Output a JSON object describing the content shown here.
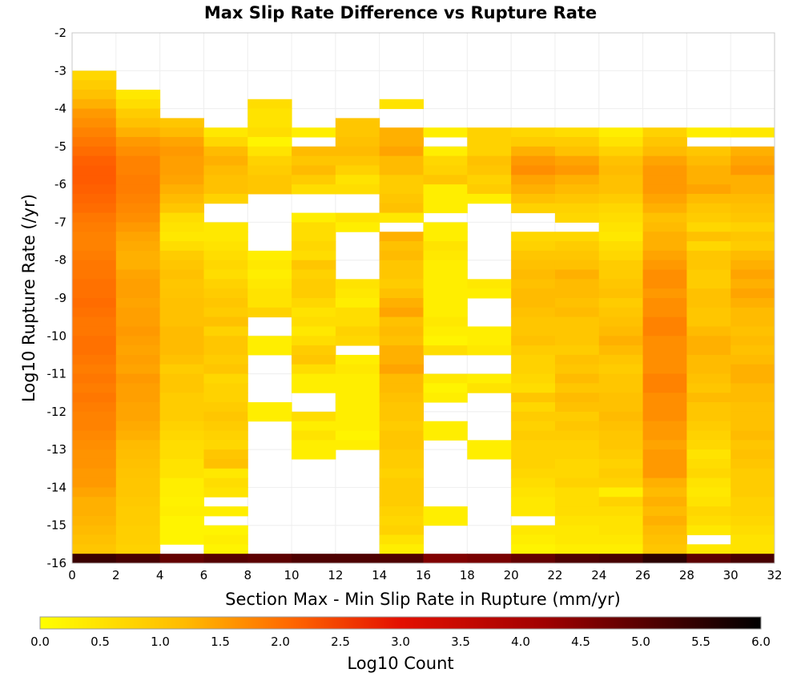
{
  "chart_data": {
    "type": "heatmap",
    "title": "Max Slip Rate Difference vs Rupture Rate",
    "xlabel": "Section Max - Min Slip Rate in Rupture (mm/yr)",
    "ylabel": "Log10 Rupture Rate (/yr)",
    "colorbar_label": "Log10 Count",
    "xlim": [
      0,
      32
    ],
    "ylim": [
      -16,
      -2
    ],
    "x_ticks": [
      "0",
      "2",
      "4",
      "6",
      "8",
      "10",
      "12",
      "14",
      "16",
      "18",
      "20",
      "22",
      "24",
      "26",
      "28",
      "30",
      "32"
    ],
    "y_ticks": [
      "-2",
      "-3",
      "-4",
      "-5",
      "-6",
      "-7",
      "-8",
      "-9",
      "-10",
      "-11",
      "-12",
      "-13",
      "-14",
      "-15",
      "-16"
    ],
    "colorbar_range": [
      0,
      6
    ],
    "colorbar_ticks": [
      "0.0",
      "0.5",
      "1.0",
      "1.5",
      "2.0",
      "2.5",
      "3.0",
      "3.5",
      "4.0",
      "4.5",
      "5.0",
      "5.5",
      "6.0"
    ],
    "colormap": [
      "#ffff00",
      "#ffbb00",
      "#ff5500",
      "#e01000",
      "#800000",
      "#000000"
    ],
    "x_bin_width": 2,
    "y_bin_height": 0.25,
    "columns": [
      {
        "x0": 0,
        "y_top": -3.0,
        "levels": [
          0.7,
          0.9,
          1.1,
          1.3,
          1.5,
          1.6,
          1.7,
          1.8,
          1.9,
          2.0,
          2.05,
          2.05,
          2.0,
          1.95,
          1.9,
          1.8,
          1.75,
          1.7,
          1.7,
          1.75,
          1.8,
          1.8,
          1.85,
          1.85,
          1.9,
          1.85,
          1.8,
          1.8,
          1.85,
          1.85,
          1.8,
          1.75,
          1.8,
          1.75,
          1.8,
          1.75,
          1.7,
          1.7,
          1.65,
          1.6,
          1.55,
          1.55,
          1.5,
          1.5,
          1.4,
          1.3,
          1.3,
          1.25,
          1.2,
          1.1,
          1.0,
          0.9
        ],
        "blanks": [],
        "floor": 5.2
      },
      {
        "x0": 2,
        "y_top": -3.5,
        "levels": [
          0.4,
          0.6,
          0.9,
          1.1,
          1.3,
          1.5,
          1.6,
          1.7,
          1.7,
          1.75,
          1.75,
          1.7,
          1.65,
          1.6,
          1.5,
          1.4,
          1.35,
          1.3,
          1.3,
          1.4,
          1.45,
          1.45,
          1.4,
          1.45,
          1.45,
          1.5,
          1.45,
          1.4,
          1.45,
          1.4,
          1.5,
          1.45,
          1.45,
          1.4,
          1.4,
          1.35,
          1.3,
          1.2,
          1.15,
          1.1,
          1.05,
          1.0,
          1.0,
          0.95,
          0.9,
          0.9,
          0.85,
          0.85,
          0.8,
          0.8
        ],
        "blanks": [],
        "floor": 5.0
      },
      {
        "x0": 4,
        "y_top": -4.25,
        "levels": [
          1.0,
          1.2,
          1.4,
          1.5,
          1.45,
          1.45,
          1.4,
          1.3,
          1.2,
          1.0,
          0.6,
          0.5,
          0.4,
          0.6,
          0.9,
          1.0,
          1.1,
          1.0,
          1.05,
          1.1,
          1.1,
          1.1,
          1.2,
          1.2,
          1.2,
          1.1,
          0.9,
          1.0,
          1.0,
          0.9,
          0.9,
          0.9,
          0.8,
          0.7,
          0.6,
          0.6,
          0.5,
          0.5,
          0.3,
          0.3,
          0.25,
          0.3,
          0.2,
          0.2,
          0.2
        ],
        "blanks": [],
        "floor": 4.6
      },
      {
        "x0": 6,
        "y_top": -4.5,
        "levels": [
          0.4,
          0.7,
          1.2,
          1.3,
          1.2,
          1.1,
          1.1,
          0.8,
          0.3,
          0.5,
          0.4,
          0.4,
          0.5,
          0.6,
          0.7,
          0.6,
          0.8,
          0.9,
          1.0,
          0.9,
          1.1,
          0.8,
          1.0,
          1.0,
          0.9,
          1.0,
          0.7,
          0.8,
          0.8,
          0.9,
          1.0,
          0.9,
          0.8,
          0.7,
          1.0,
          1.1,
          0.4,
          0.6,
          0.5,
          0.4,
          0.3,
          0.3,
          0.2,
          0.3,
          0.2
        ],
        "blanks": [
          8,
          9,
          39,
          41,
          45
        ],
        "floor": 4.8
      },
      {
        "x0": 8,
        "y_top": -3.75,
        "levels": [
          0.6,
          0.5,
          0.5,
          0.6,
          0.2,
          0.5,
          0.8,
          0.9,
          1.0,
          1.0,
          0.9,
          0.8,
          0.6,
          0.3,
          0.3,
          0.3,
          0.3,
          0.4,
          0.3,
          0.4,
          0.5,
          0.5,
          0.8,
          0.6,
          0.5,
          0.3,
          0.3,
          0.4,
          0.6,
          0.7,
          0.4,
          0.3,
          0.3,
          0.3,
          0.4,
          0.4,
          0.3,
          0.3,
          0.3,
          0.3,
          0.3,
          0.3,
          0.3,
          0.3,
          0.3,
          0.3,
          0.3,
          0.3,
          0.3
        ],
        "blanks": [
          10,
          11,
          12,
          13,
          14,
          15,
          23,
          24,
          27,
          28,
          29,
          30,
          31,
          34,
          35,
          36,
          37,
          38,
          39,
          40,
          41,
          42,
          43,
          44,
          45,
          46,
          47,
          48
        ],
        "floor": 4.7
      },
      {
        "x0": 10,
        "y_top": -4.5,
        "levels": [
          0.3,
          0.7,
          1.2,
          1.0,
          1.2,
          0.9,
          0.6,
          0.4,
          0.3,
          0.3,
          0.6,
          0.6,
          0.7,
          0.6,
          1.0,
          0.8,
          0.9,
          0.9,
          0.7,
          0.5,
          0.6,
          0.4,
          0.6,
          0.9,
          1.0,
          0.6,
          0.3,
          0.3,
          0.7,
          0.5,
          0.6,
          0.3,
          0.5,
          0.3,
          0.3,
          0.2,
          0.5,
          0.3,
          0.2,
          0.3,
          0.6,
          0.3,
          0.3,
          0.3,
          0.3
        ],
        "blanks": [
          1,
          7,
          8,
          28,
          29,
          35,
          36,
          37,
          38,
          39,
          40,
          41,
          42,
          43,
          44
        ],
        "floor": 4.9
      },
      {
        "x0": 12,
        "y_top": -4.25,
        "levels": [
          1.0,
          1.0,
          1.1,
          1.2,
          1.0,
          0.8,
          0.5,
          0.6,
          0.4,
          0.5,
          0.5,
          0.3,
          0.3,
          0.6,
          0.7,
          0.8,
          0.6,
          0.5,
          0.4,
          0.3,
          0.6,
          0.6,
          0.8,
          0.7,
          0.5,
          0.3,
          0.4,
          0.3,
          0.3,
          0.3,
          0.3,
          0.3,
          0.3,
          0.2,
          0.3,
          0.3,
          0.2,
          0.3,
          0.2,
          0.3,
          0.3,
          0.3,
          0.3,
          0.3,
          0.3,
          0.3,
          0.3
        ],
        "blanks": [
          8,
          9,
          12,
          13,
          14,
          15,
          16,
          24,
          35,
          36,
          37,
          38,
          39,
          40,
          41,
          42,
          43,
          44,
          45,
          46
        ],
        "floor": 4.9
      },
      {
        "x0": 14,
        "y_top": -3.75,
        "levels": [
          0.5,
          0.5,
          1.3,
          1.3,
          1.3,
          1.4,
          1.2,
          1.2,
          0.9,
          0.9,
          1.0,
          1.1,
          0.4,
          0.9,
          1.3,
          1.1,
          1.2,
          1.0,
          1.0,
          0.9,
          1.1,
          1.3,
          1.4,
          1.1,
          1.2,
          1.1,
          1.3,
          1.3,
          1.4,
          1.2,
          1.2,
          1.1,
          1.0,
          1.0,
          0.9,
          1.0,
          1.0,
          0.9,
          0.9,
          0.8,
          0.9,
          0.9,
          0.9,
          0.8,
          0.7,
          0.8,
          0.5,
          0.3,
          0.2,
          0.1,
          0.1
        ],
        "blanks": [
          1,
          2,
          13
        ],
        "floor": 4.9
      },
      {
        "x0": 16,
        "y_top": -4.5,
        "levels": [
          0.3,
          0.5,
          0.3,
          0.7,
          0.8,
          1.0,
          0.3,
          0.3,
          0.3,
          0.2,
          0.3,
          0.3,
          0.5,
          0.4,
          0.3,
          0.3,
          0.3,
          0.3,
          0.3,
          0.3,
          0.4,
          0.3,
          0.2,
          0.6,
          0.5,
          0.2,
          0.4,
          0.2,
          0.3,
          0.2,
          0.3,
          0.3,
          0.3,
          0.2,
          0.3,
          0.3,
          0.3,
          0.6,
          0.4,
          0.3,
          0.3,
          0.3,
          0.3,
          0.3,
          0.3
        ],
        "blanks": [
          1,
          9,
          24,
          25,
          29,
          30,
          33,
          34,
          35,
          36,
          37,
          38,
          39,
          42,
          43,
          44
        ],
        "floor": 4.2
      },
      {
        "x0": 18,
        "y_top": -4.5,
        "levels": [
          0.8,
          0.8,
          0.8,
          1.1,
          1.0,
          0.8,
          0.9,
          0.3,
          0.3,
          0.3,
          0.3,
          0.3,
          0.3,
          0.3,
          0.3,
          0.4,
          0.4,
          0.3,
          0.3,
          0.3,
          0.3,
          0.3,
          0.3,
          0.4,
          0.4,
          0.5,
          0.3,
          0.5,
          0.5,
          0.4,
          0.3,
          0.3,
          0.3,
          0.3,
          0.3,
          0.3,
          0.3,
          0.3,
          0.3,
          0.3,
          0.3,
          0.3,
          0.3,
          0.3,
          0.3
        ],
        "blanks": [
          8,
          9,
          10,
          11,
          12,
          13,
          14,
          15,
          18,
          19,
          20,
          24,
          25,
          28,
          29,
          30,
          31,
          32,
          35,
          36,
          37,
          38,
          39,
          40,
          41,
          42,
          43,
          44
        ],
        "floor": 4.3
      },
      {
        "x0": 20,
        "y_top": -4.5,
        "levels": [
          0.7,
          0.9,
          1.3,
          1.5,
          1.6,
          1.4,
          1.3,
          1.1,
          0.8,
          0.8,
          0.6,
          0.7,
          0.8,
          1.0,
          1.1,
          1.2,
          1.1,
          1.2,
          1.2,
          1.1,
          1.0,
          1.0,
          1.1,
          0.9,
          0.8,
          0.8,
          0.7,
          0.6,
          1.0,
          0.7,
          0.9,
          0.8,
          0.9,
          0.8,
          0.8,
          0.8,
          0.7,
          0.6,
          0.5,
          0.4,
          0.4,
          0.3,
          0.4,
          0.3,
          0.2
        ],
        "blanks": [
          9,
          10,
          41
        ],
        "floor": 4.6
      },
      {
        "x0": 22,
        "y_top": -4.5,
        "levels": [
          0.6,
          0.9,
          1.1,
          1.4,
          1.5,
          1.3,
          1.2,
          1.0,
          0.8,
          0.7,
          0.6,
          0.7,
          0.9,
          1.0,
          1.1,
          1.3,
          1.2,
          1.2,
          1.1,
          1.2,
          1.0,
          1.0,
          1.0,
          0.9,
          1.1,
          1.0,
          1.2,
          1.0,
          1.2,
          1.1,
          0.9,
          1.0,
          0.9,
          0.8,
          0.8,
          0.7,
          0.7,
          0.8,
          0.6,
          0.6,
          0.6,
          0.5,
          0.4,
          0.4,
          0.3
        ],
        "blanks": [
          10
        ],
        "floor": 4.9
      },
      {
        "x0": 24,
        "y_top": -4.5,
        "levels": [
          0.3,
          0.5,
          0.8,
          1.1,
          1.2,
          1.1,
          1.1,
          0.9,
          0.7,
          0.6,
          0.5,
          0.4,
          0.6,
          0.7,
          0.9,
          0.9,
          1.0,
          1.1,
          0.9,
          1.0,
          1.1,
          1.2,
          1.3,
          1.2,
          1.0,
          0.9,
          1.0,
          1.0,
          1.1,
          1.1,
          1.2,
          1.1,
          1.0,
          1.0,
          0.9,
          0.8,
          0.9,
          0.8,
          0.3,
          0.8,
          0.6,
          0.5,
          0.5,
          0.4,
          0.3
        ],
        "blanks": [],
        "floor": 5.0
      },
      {
        "x0": 26,
        "y_top": -4.5,
        "levels": [
          0.8,
          1.0,
          1.2,
          1.4,
          1.5,
          1.5,
          1.5,
          1.4,
          1.3,
          1.1,
          1.2,
          1.3,
          1.3,
          1.4,
          1.5,
          1.6,
          1.6,
          1.5,
          1.6,
          1.6,
          1.7,
          1.7,
          1.6,
          1.6,
          1.6,
          1.6,
          1.7,
          1.7,
          1.6,
          1.6,
          1.6,
          1.5,
          1.5,
          1.4,
          1.5,
          1.5,
          1.5,
          1.3,
          1.2,
          1.3,
          1.2,
          1.3,
          1.2,
          1.1,
          1.0
        ],
        "blanks": [],
        "floor": 5.4
      },
      {
        "x0": 28,
        "y_top": -4.5,
        "levels": [
          0.3,
          0.5,
          1.0,
          1.2,
          1.3,
          1.3,
          1.4,
          1.2,
          1.0,
          0.9,
          0.7,
          1.1,
          0.7,
          1.0,
          1.0,
          0.9,
          0.9,
          1.1,
          1.1,
          1.0,
          1.0,
          1.2,
          1.3,
          1.3,
          1.2,
          1.2,
          1.1,
          1.0,
          1.2,
          1.0,
          1.0,
          0.9,
          0.8,
          0.7,
          0.5,
          0.6,
          0.7,
          0.5,
          0.4,
          0.5,
          0.7,
          0.6,
          0.4,
          0.4,
          0.4
        ],
        "blanks": [
          1,
          43
        ],
        "floor": 4.7
      },
      {
        "x0": 30,
        "y_top": -4.5,
        "levels": [
          0.4,
          0.9,
          1.3,
          1.4,
          1.5,
          1.3,
          1.3,
          1.2,
          1.1,
          1.0,
          0.8,
          1.0,
          0.9,
          1.2,
          1.3,
          1.4,
          1.3,
          1.4,
          1.3,
          1.2,
          1.2,
          1.1,
          1.2,
          1.1,
          1.2,
          1.3,
          1.3,
          1.2,
          1.2,
          1.1,
          1.1,
          1.1,
          1.2,
          1.0,
          1.1,
          1.0,
          0.9,
          0.9,
          0.9,
          0.8,
          0.8,
          0.7,
          0.6,
          0.5,
          0.5
        ],
        "blanks": [
          1
        ],
        "floor": 5.0
      }
    ]
  }
}
